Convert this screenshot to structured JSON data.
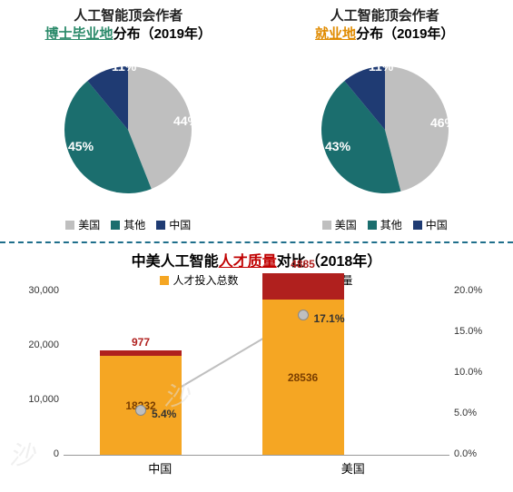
{
  "colors": {
    "usa": "#bfbfbf",
    "other": "#1b6e6e",
    "china": "#1f3b73",
    "bar_total": "#f5a623",
    "bar_elite": "#b0201e",
    "title_black": "#222222",
    "accent_green": "#2b8a6a",
    "accent_orange": "#e08b00",
    "accent_red": "#c00000",
    "line": "#bfbfbf"
  },
  "pies": [
    {
      "title_prefix": "人工智能顶会作者",
      "accent": "博士毕业地",
      "accent_color_key": "accent_green",
      "title_suffix": "分布（2019年）",
      "slices": [
        {
          "label": "美国",
          "value": 44,
          "color_key": "usa",
          "lbl_pos": [
            150,
            90
          ]
        },
        {
          "label": "其他",
          "value": 45,
          "color_key": "other",
          "lbl_pos": [
            34,
            118
          ]
        },
        {
          "label": "中国",
          "value": 11,
          "color_key": "china",
          "lbl_pos": [
            82,
            30
          ]
        }
      ]
    },
    {
      "title_prefix": "人工智能顶会作者",
      "accent": "就业地",
      "accent_color_key": "accent_orange",
      "title_suffix": "分布（2019年）",
      "slices": [
        {
          "label": "美国",
          "value": 46,
          "color_key": "usa",
          "lbl_pos": [
            150,
            92
          ]
        },
        {
          "label": "其他",
          "value": 43,
          "color_key": "other",
          "lbl_pos": [
            34,
            118
          ]
        },
        {
          "label": "中国",
          "value": 11,
          "color_key": "china",
          "lbl_pos": [
            82,
            30
          ]
        }
      ]
    }
  ],
  "pie_legend": [
    {
      "label": "美国",
      "color_key": "usa"
    },
    {
      "label": "其他",
      "color_key": "other"
    },
    {
      "label": "中国",
      "color_key": "china"
    }
  ],
  "bar_chart": {
    "title_prefix": "中美人工智能",
    "accent": "人才质量",
    "accent_color_key": "accent_red",
    "title_suffix": "对比（2018年）",
    "legend": [
      {
        "label": "人才投入总数",
        "color_key": "bar_total"
      },
      {
        "label": "杰出人才数量",
        "color_key": "bar_elite"
      }
    ],
    "y_left": {
      "max": 30000,
      "ticks": [
        0,
        10000,
        20000,
        30000
      ],
      "tick_labels": [
        "0",
        "10,000",
        "20,000",
        "30,000"
      ]
    },
    "y_right": {
      "max": 20,
      "ticks": [
        0,
        5,
        10,
        15,
        20
      ],
      "tick_labels": [
        "0.0%",
        "5.0%",
        "10.0%",
        "15.0%",
        "20.0%"
      ]
    },
    "groups": [
      {
        "label": "中国",
        "total": 18232,
        "elite": 977,
        "pct": 5.4,
        "x": 20
      },
      {
        "label": "美国",
        "total": 28536,
        "elite": 4885,
        "pct": 17.1,
        "x": 62
      }
    ]
  }
}
